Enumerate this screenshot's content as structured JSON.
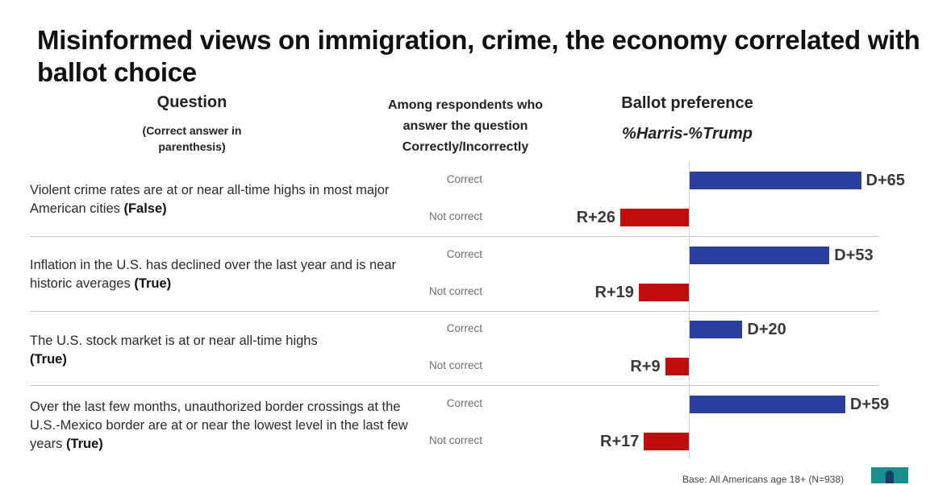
{
  "title": "Misinformed views on immigration, crime, the economy correlated with ballot choice",
  "headers": {
    "question": "Question",
    "question_sub_line1": "(Correct answer in",
    "question_sub_line2": "parenthesis)",
    "among_line1": "Among respondents who",
    "among_line2": "answer the question",
    "among_line3": "Correctly/Incorrectly",
    "ballot": "Ballot preference",
    "metric": "%Harris-%Trump"
  },
  "colors": {
    "harris": "#2b3f9e",
    "trump": "#c00d0d"
  },
  "questions": [
    {
      "text": "Violent crime rates are at or near all-time highs in most major American cities",
      "answer": "(False)"
    },
    {
      "text": "Inflation in the U.S. has declined over the last year and is near historic averages",
      "answer": "(True)"
    },
    {
      "text": "The U.S. stock market is at or near all-time highs",
      "answer": "(True)"
    },
    {
      "text": "Over the last few months, unauthorized border crossings at the U.S.-Mexico border are at or near the lowest level in the last few years",
      "answer": "(True)"
    }
  ],
  "chart_data": {
    "type": "bar",
    "orientation": "horizontal",
    "title": "Misinformed views on immigration, crime, the economy correlated with ballot choice",
    "xlabel": "%Harris-%Trump",
    "categories": [
      "Violent crime rates are at or near all-time highs in most major American cities (False)",
      "Inflation in the U.S. has declined over the last year and is near historic averages (True)",
      "The U.S. stock market is at or near all-time highs (True)",
      "Over the last few months, unauthorized border crossings at the U.S.-Mexico border are at or near the lowest level in the last few years (True)"
    ],
    "series": [
      {
        "name": "Correct",
        "values": [
          65,
          53,
          20,
          59
        ],
        "labels": [
          "D+65",
          "D+53",
          "D+20",
          "D+59"
        ]
      },
      {
        "name": "Not correct",
        "values": [
          -26,
          -19,
          -9,
          -17
        ],
        "labels": [
          "R+26",
          "R+19",
          "R+9",
          "R+17"
        ]
      }
    ],
    "xlim": [
      -30,
      70
    ]
  },
  "footnote": "Base: All Americans age 18+ (N=938)"
}
